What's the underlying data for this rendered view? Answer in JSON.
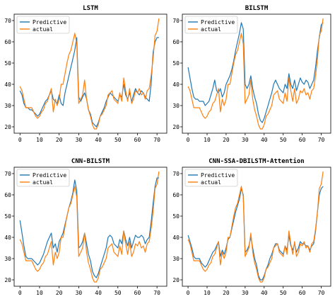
{
  "colors": {
    "predictive": "#1f77b4",
    "actual": "#ff7f0e"
  },
  "chart_data": [
    {
      "type": "line",
      "title": "LSTM",
      "xlim": [
        -3,
        75
      ],
      "ylim": [
        17,
        73
      ],
      "xticks": [
        0,
        10,
        20,
        30,
        40,
        50,
        60,
        70
      ],
      "yticks": [
        20,
        30,
        40,
        50,
        60,
        70
      ],
      "legend": "top-left",
      "series": [
        {
          "name": "Predictive",
          "values": [
            37,
            35,
            31,
            29,
            29,
            28,
            28,
            27,
            26,
            25,
            26,
            28,
            30,
            32,
            33,
            35,
            37,
            33,
            32,
            31,
            35,
            31,
            30,
            36,
            40,
            44,
            48,
            52,
            56,
            62,
            34,
            32,
            34,
            36,
            33,
            28,
            26,
            22,
            21,
            20,
            22,
            25,
            27,
            29,
            32,
            34,
            36,
            35,
            34,
            33,
            32,
            35,
            34,
            40,
            35,
            33,
            36,
            32,
            35,
            38,
            36,
            35,
            37,
            36,
            34,
            33,
            32,
            40,
            55,
            60,
            62,
            62
          ]
        },
        {
          "name": "actual",
          "values": [
            39,
            37,
            33,
            29,
            29,
            29,
            29,
            27,
            25,
            24,
            25,
            27,
            28,
            31,
            32,
            35,
            38,
            27,
            33,
            30,
            33,
            40,
            40,
            45,
            50,
            54,
            56,
            60,
            64,
            59,
            31,
            33,
            35,
            42,
            33,
            28,
            25,
            21,
            19,
            19,
            21,
            25,
            26,
            28,
            30,
            35,
            36,
            37,
            33,
            32,
            31,
            36,
            32,
            43,
            37,
            32,
            38,
            31,
            33,
            37,
            36,
            38,
            35,
            36,
            33,
            37,
            38,
            44,
            52,
            63,
            65,
            71
          ]
        }
      ]
    },
    {
      "type": "line",
      "title": "BILSTM",
      "xlim": [
        -3,
        75
      ],
      "ylim": [
        17,
        73
      ],
      "xticks": [
        0,
        10,
        20,
        30,
        40,
        50,
        60,
        70
      ],
      "yticks": [
        20,
        30,
        40,
        50,
        60,
        70
      ],
      "legend": "top-left",
      "series": [
        {
          "name": "Predictive",
          "values": [
            48,
            43,
            38,
            34,
            33,
            33,
            32,
            32,
            32,
            30,
            31,
            32,
            35,
            38,
            42,
            37,
            36,
            38,
            34,
            36,
            40,
            42,
            44,
            47,
            51,
            56,
            60,
            64,
            69,
            66,
            40,
            38,
            40,
            44,
            38,
            34,
            31,
            26,
            23,
            22,
            24,
            27,
            30,
            33,
            36,
            40,
            42,
            40,
            38,
            37,
            36,
            40,
            38,
            45,
            40,
            38,
            42,
            37,
            40,
            43,
            41,
            40,
            42,
            41,
            38,
            40,
            42,
            48,
            56,
            62,
            68,
            69
          ]
        },
        {
          "name": "actual",
          "values": [
            39,
            37,
            33,
            29,
            29,
            29,
            29,
            27,
            25,
            24,
            25,
            27,
            28,
            31,
            32,
            35,
            38,
            27,
            33,
            30,
            33,
            40,
            40,
            45,
            50,
            54,
            56,
            60,
            64,
            59,
            31,
            33,
            35,
            42,
            33,
            28,
            25,
            21,
            19,
            19,
            21,
            25,
            26,
            28,
            30,
            35,
            36,
            37,
            33,
            32,
            31,
            36,
            32,
            43,
            37,
            32,
            38,
            31,
            33,
            37,
            36,
            38,
            35,
            36,
            33,
            37,
            38,
            44,
            52,
            63,
            65,
            71
          ]
        }
      ]
    },
    {
      "type": "line",
      "title": "CNN-BILSTM",
      "xlim": [
        -3,
        75
      ],
      "ylim": [
        17,
        73
      ],
      "xticks": [
        0,
        10,
        20,
        30,
        40,
        50,
        60,
        70
      ],
      "yticks": [
        20,
        30,
        40,
        50,
        60,
        70
      ],
      "legend": "top-left",
      "series": [
        {
          "name": "Predictive",
          "values": [
            48,
            42,
            36,
            31,
            30,
            30,
            30,
            29,
            28,
            27,
            28,
            30,
            32,
            35,
            38,
            40,
            42,
            35,
            37,
            33,
            38,
            40,
            42,
            46,
            50,
            54,
            57,
            61,
            67,
            62,
            35,
            36,
            38,
            42,
            37,
            32,
            29,
            24,
            22,
            21,
            23,
            26,
            29,
            32,
            35,
            40,
            41,
            40,
            37,
            36,
            35,
            39,
            37,
            43,
            39,
            36,
            40,
            35,
            38,
            41,
            40,
            40,
            41,
            40,
            37,
            39,
            40,
            47,
            56,
            64,
            68,
            68
          ]
        },
        {
          "name": "actual",
          "values": [
            39,
            37,
            33,
            29,
            29,
            29,
            29,
            27,
            25,
            24,
            25,
            27,
            28,
            31,
            32,
            35,
            38,
            27,
            33,
            30,
            33,
            40,
            40,
            45,
            50,
            54,
            56,
            60,
            64,
            59,
            31,
            33,
            35,
            42,
            33,
            28,
            25,
            21,
            19,
            19,
            21,
            25,
            26,
            28,
            30,
            35,
            36,
            37,
            33,
            32,
            31,
            36,
            32,
            43,
            37,
            32,
            38,
            31,
            33,
            37,
            36,
            38,
            35,
            36,
            33,
            37,
            38,
            44,
            52,
            63,
            65,
            71
          ]
        }
      ]
    },
    {
      "type": "line",
      "title": "CNN-SSA-DBILSTM-Attention",
      "xlim": [
        -3,
        75
      ],
      "ylim": [
        17,
        73
      ],
      "xticks": [
        0,
        10,
        20,
        30,
        40,
        50,
        60,
        70
      ],
      "yticks": [
        20,
        30,
        40,
        50,
        60,
        70
      ],
      "legend": "top-left",
      "series": [
        {
          "name": "Predictive",
          "values": [
            41,
            38,
            35,
            31,
            30,
            30,
            30,
            28,
            27,
            26,
            27,
            29,
            31,
            33,
            34,
            36,
            38,
            31,
            34,
            32,
            35,
            39,
            40,
            44,
            48,
            52,
            55,
            58,
            63,
            60,
            33,
            34,
            36,
            40,
            35,
            30,
            27,
            22,
            20,
            20,
            22,
            25,
            27,
            30,
            32,
            35,
            37,
            37,
            34,
            33,
            32,
            36,
            34,
            41,
            36,
            34,
            37,
            33,
            35,
            38,
            37,
            37,
            36,
            36,
            34,
            36,
            37,
            43,
            52,
            60,
            63,
            64
          ]
        },
        {
          "name": "actual",
          "values": [
            39,
            37,
            33,
            29,
            29,
            29,
            29,
            27,
            25,
            24,
            25,
            27,
            28,
            31,
            32,
            35,
            38,
            27,
            33,
            30,
            33,
            40,
            40,
            45,
            50,
            54,
            56,
            60,
            64,
            59,
            31,
            33,
            35,
            42,
            33,
            28,
            25,
            21,
            19,
            19,
            21,
            25,
            26,
            28,
            30,
            35,
            36,
            37,
            33,
            32,
            31,
            36,
            32,
            43,
            37,
            32,
            38,
            31,
            33,
            37,
            36,
            38,
            35,
            36,
            33,
            37,
            38,
            44,
            52,
            63,
            65,
            71
          ]
        }
      ]
    }
  ]
}
